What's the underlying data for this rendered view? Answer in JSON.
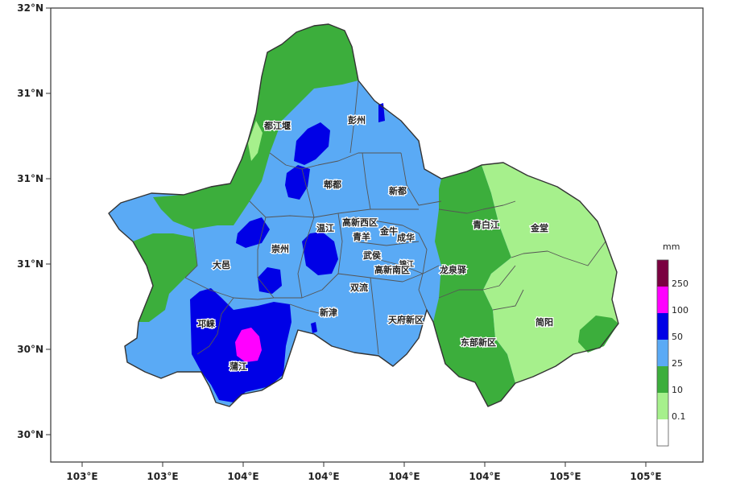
{
  "axes": {
    "y_ticks": [
      "32°N",
      "31°N",
      "31°N",
      "31°N",
      "30°N",
      "30°N"
    ],
    "x_ticks": [
      "103°E",
      "103°E",
      "104°E",
      "104°E",
      "104°E",
      "104°E",
      "105°E",
      "105°E"
    ]
  },
  "districts": {
    "dujiangyan": "都江堰",
    "pengzhou": "彭州",
    "pixian": "郫都",
    "xindu": "新都",
    "wenjiang": "温江",
    "gaoxin_west": "高新西区",
    "qingyang": "青羊",
    "jinniu": "金牛",
    "chenghua": "成华",
    "chongzhou": "崇州",
    "dayi": "大邑",
    "wuhou": "武侯",
    "jinjiang": "锦江",
    "gaoxin_south": "高新南区",
    "qingbaijiang": "青白江",
    "jintang": "金堂",
    "longquanyi": "龙泉驿",
    "shuangliu": "双流",
    "xinjin": "新津",
    "tianfu": "天府新区",
    "qionglai": "邛崃",
    "pujiang": "蒲江",
    "dongbu": "东部新区",
    "jianyang": "简阳"
  },
  "legend": {
    "unit": "mm",
    "labels": [
      "250",
      "100",
      "50",
      "25",
      "10",
      "0.1"
    ],
    "colors": [
      "#7a0040",
      "#ff00ff",
      "#0000e6",
      "#5aaaf5",
      "#3cae3c",
      "#a6f08c",
      "#ffffff"
    ]
  },
  "colors": {
    "heavy_50": "#0000e6",
    "rain_25": "#5aaaf5",
    "rain_10": "#3cae3c",
    "rain_01": "#a6f08c",
    "rain_100": "#ff00ff"
  }
}
